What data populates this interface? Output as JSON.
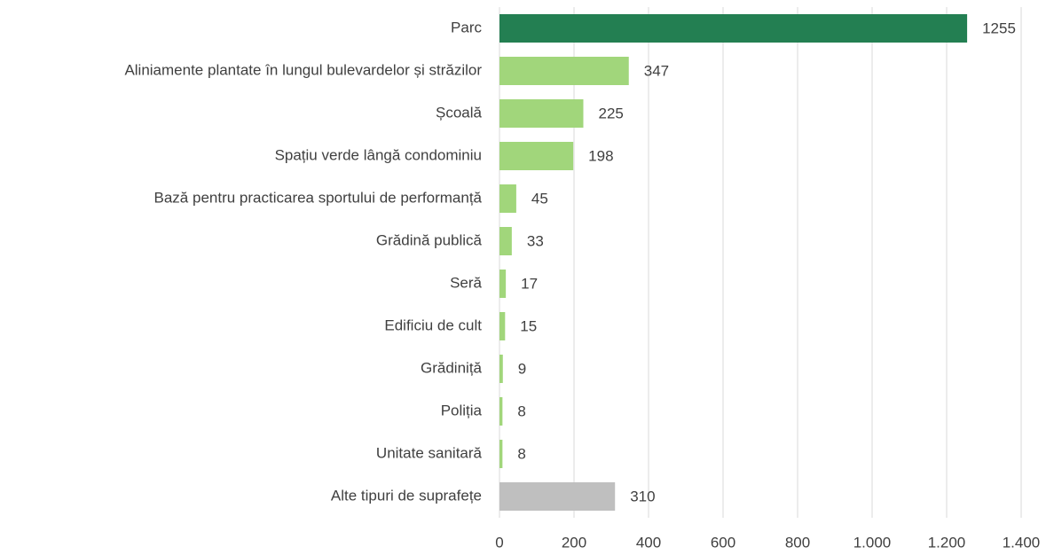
{
  "chart_data": {
    "type": "barh",
    "categories": [
      "Parc",
      "Aliniamente plantate în lungul bulevardelor și străzilor",
      "Școală",
      "Spațiu verde lângă condominiu",
      "Bază pentru practicarea sportului de performanță",
      "Grădină publică",
      "Seră",
      "Edificiu de cult",
      "Grădiniță",
      "Poliția",
      "Unitate sanitară",
      "Alte tipuri de suprafețe"
    ],
    "values": [
      1255,
      347,
      225,
      198,
      45,
      33,
      17,
      15,
      9,
      8,
      8,
      310
    ],
    "colors": [
      "#237f52",
      "#a1d67b",
      "#a1d67b",
      "#a1d67b",
      "#a1d67b",
      "#a1d67b",
      "#a1d67b",
      "#a1d67b",
      "#a1d67b",
      "#a1d67b",
      "#a1d67b",
      "#bfbfbf"
    ],
    "xlim": [
      0,
      1400
    ],
    "xticks": [
      0,
      200,
      400,
      600,
      800,
      {
        "value": 1000,
        "label": "1.000"
      },
      {
        "value": 1200,
        "label": "1.200"
      },
      {
        "value": 1400,
        "label": "1.400"
      }
    ],
    "grid": true
  }
}
